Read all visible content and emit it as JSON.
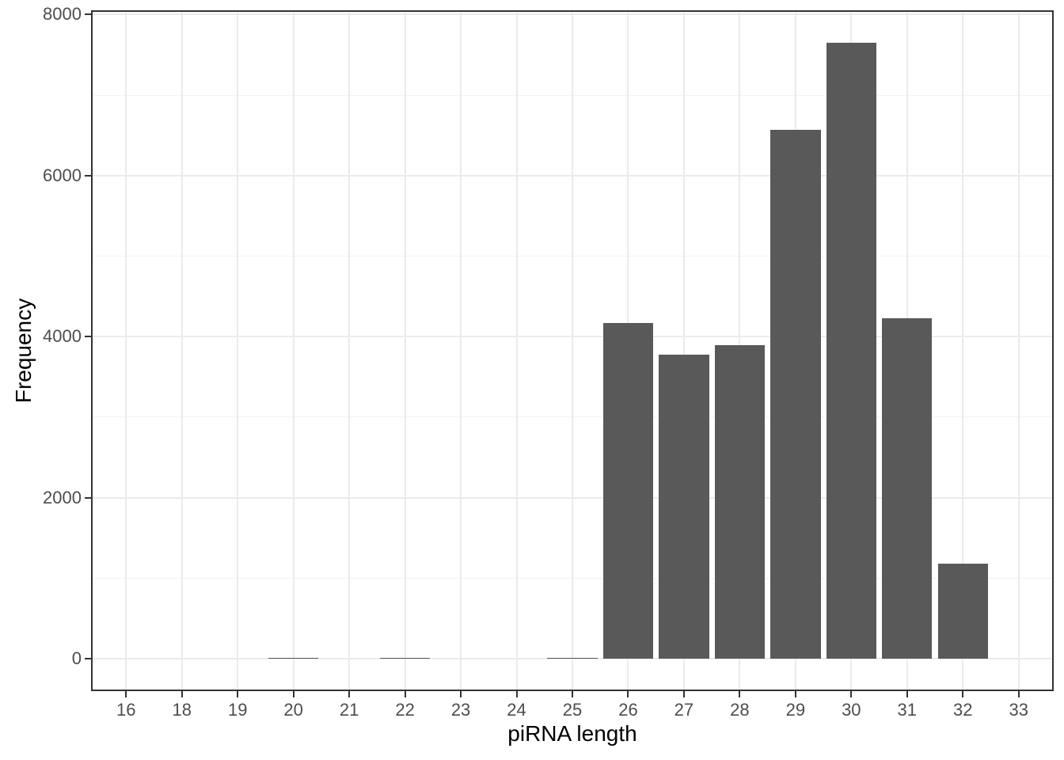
{
  "chart_data": {
    "type": "bar",
    "title": "",
    "xlabel": "piRNA length",
    "ylabel": "Frequency",
    "categories": [
      "16",
      "18",
      "19",
      "20",
      "21",
      "22",
      "23",
      "24",
      "25",
      "26",
      "27",
      "28",
      "29",
      "30",
      "31",
      "32",
      "33"
    ],
    "values": [
      0,
      0,
      0,
      15,
      0,
      15,
      0,
      0,
      12,
      4170,
      3780,
      3890,
      6570,
      7650,
      4230,
      1180,
      0
    ],
    "y_ticks": [
      0,
      2000,
      4000,
      6000,
      8000
    ],
    "y_tick_labels": [
      "0",
      "2000",
      "4000",
      "6000",
      "8000"
    ],
    "y_minor_ticks": [
      1000,
      3000,
      5000,
      7000
    ],
    "ylim": [
      -382.5,
      8032.5
    ],
    "grid": true,
    "legend_position": "none",
    "bar_color": "#595959",
    "panel_border_color": "#333333",
    "grid_major_color": "#ebebeb",
    "grid_minor_color": "#f2f2f2",
    "tick_mark_color": "#333333",
    "tick_label_color": "#4d4d4d",
    "axis_title_color": "#000000",
    "background_color": "#ffffff"
  }
}
